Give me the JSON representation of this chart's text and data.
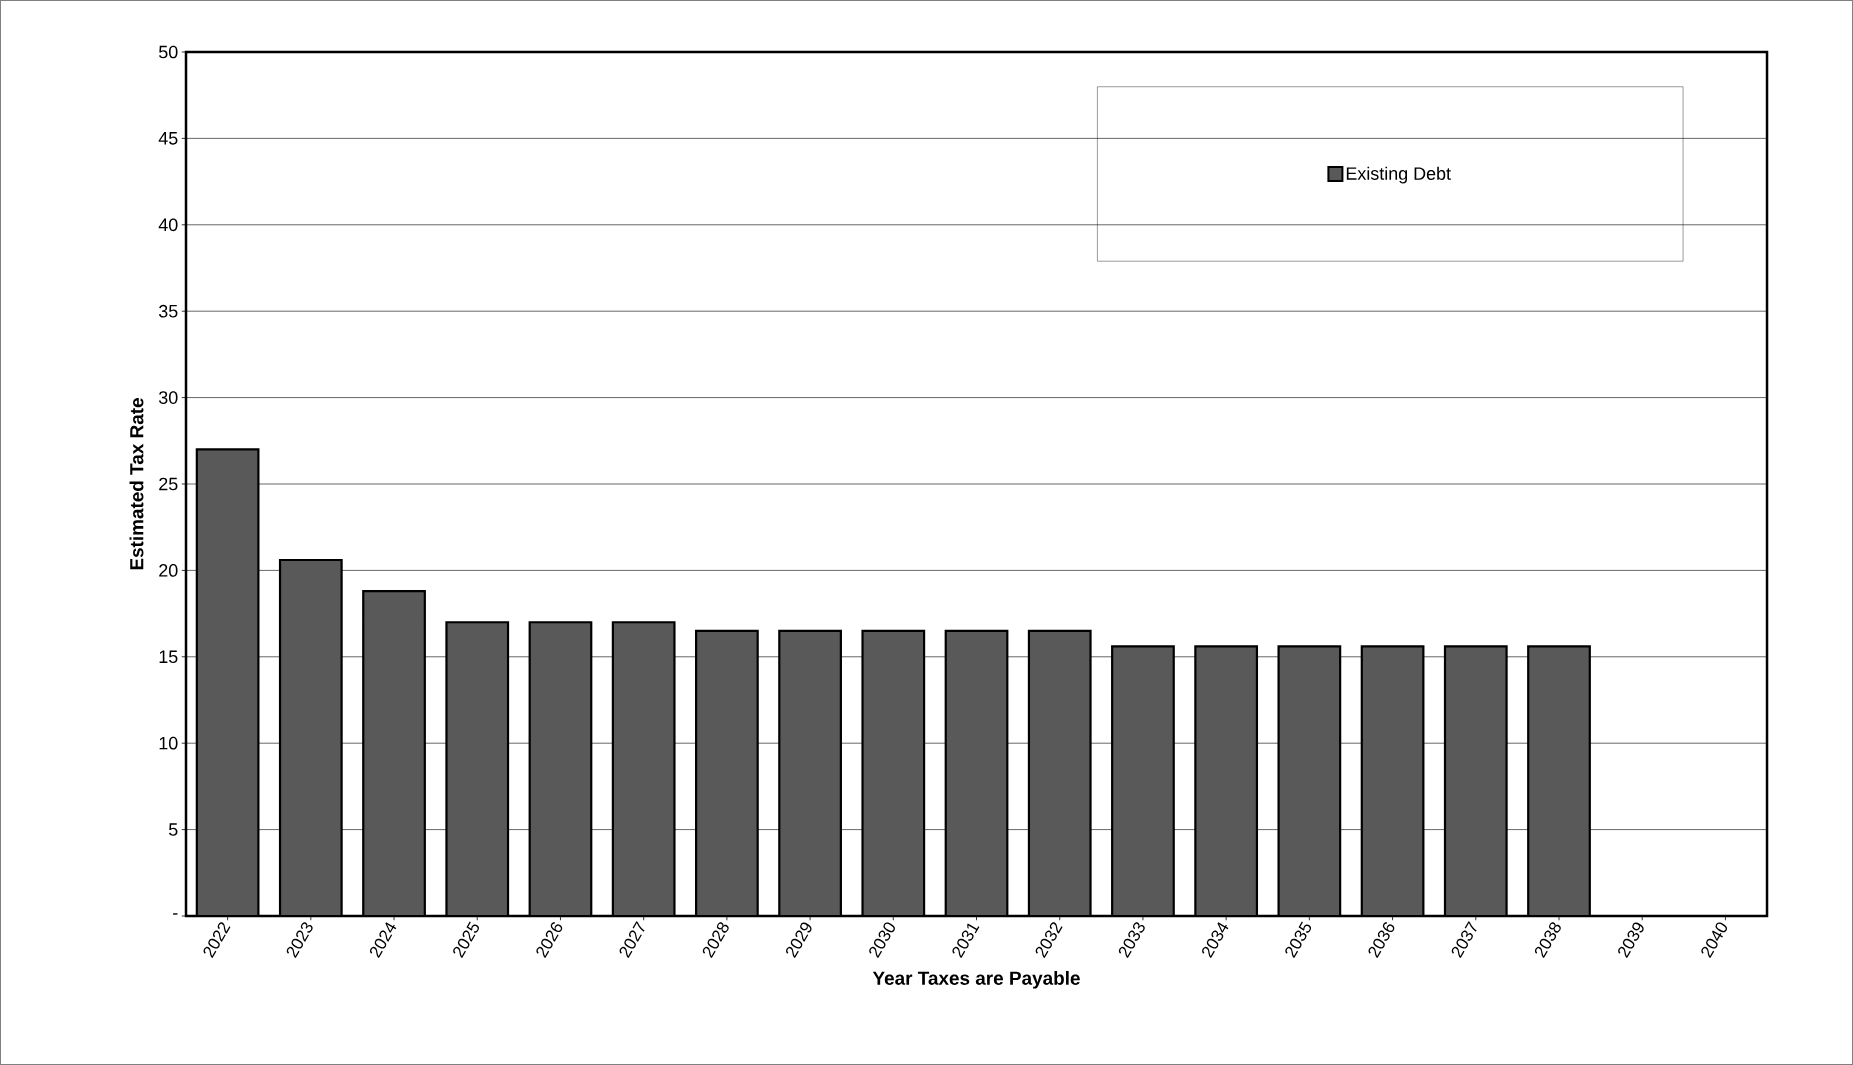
{
  "chart_data": {
    "type": "bar",
    "xlabel": "Year Taxes are Payable",
    "ylabel": "Estimated Tax Rate",
    "categories": [
      "2022",
      "2023",
      "2024",
      "2025",
      "2026",
      "2027",
      "2028",
      "2029",
      "2030",
      "2031",
      "2032",
      "2033",
      "2034",
      "2035",
      "2036",
      "2037",
      "2038",
      "2039",
      "2040"
    ],
    "series": [
      {
        "name": "Existing Debt",
        "color": "#595959",
        "values": [
          27.0,
          20.6,
          18.8,
          17.0,
          17.0,
          17.0,
          16.5,
          16.5,
          16.5,
          16.5,
          16.5,
          15.6,
          15.6,
          15.6,
          15.6,
          15.6,
          15.6,
          0,
          0
        ]
      }
    ],
    "ylim": [
      0,
      50
    ],
    "yticks": [
      {
        "value": 0,
        "label": "-"
      },
      5,
      10,
      15,
      20,
      25,
      30,
      35,
      40,
      45,
      50
    ],
    "grid": "y",
    "legend": "top right"
  }
}
